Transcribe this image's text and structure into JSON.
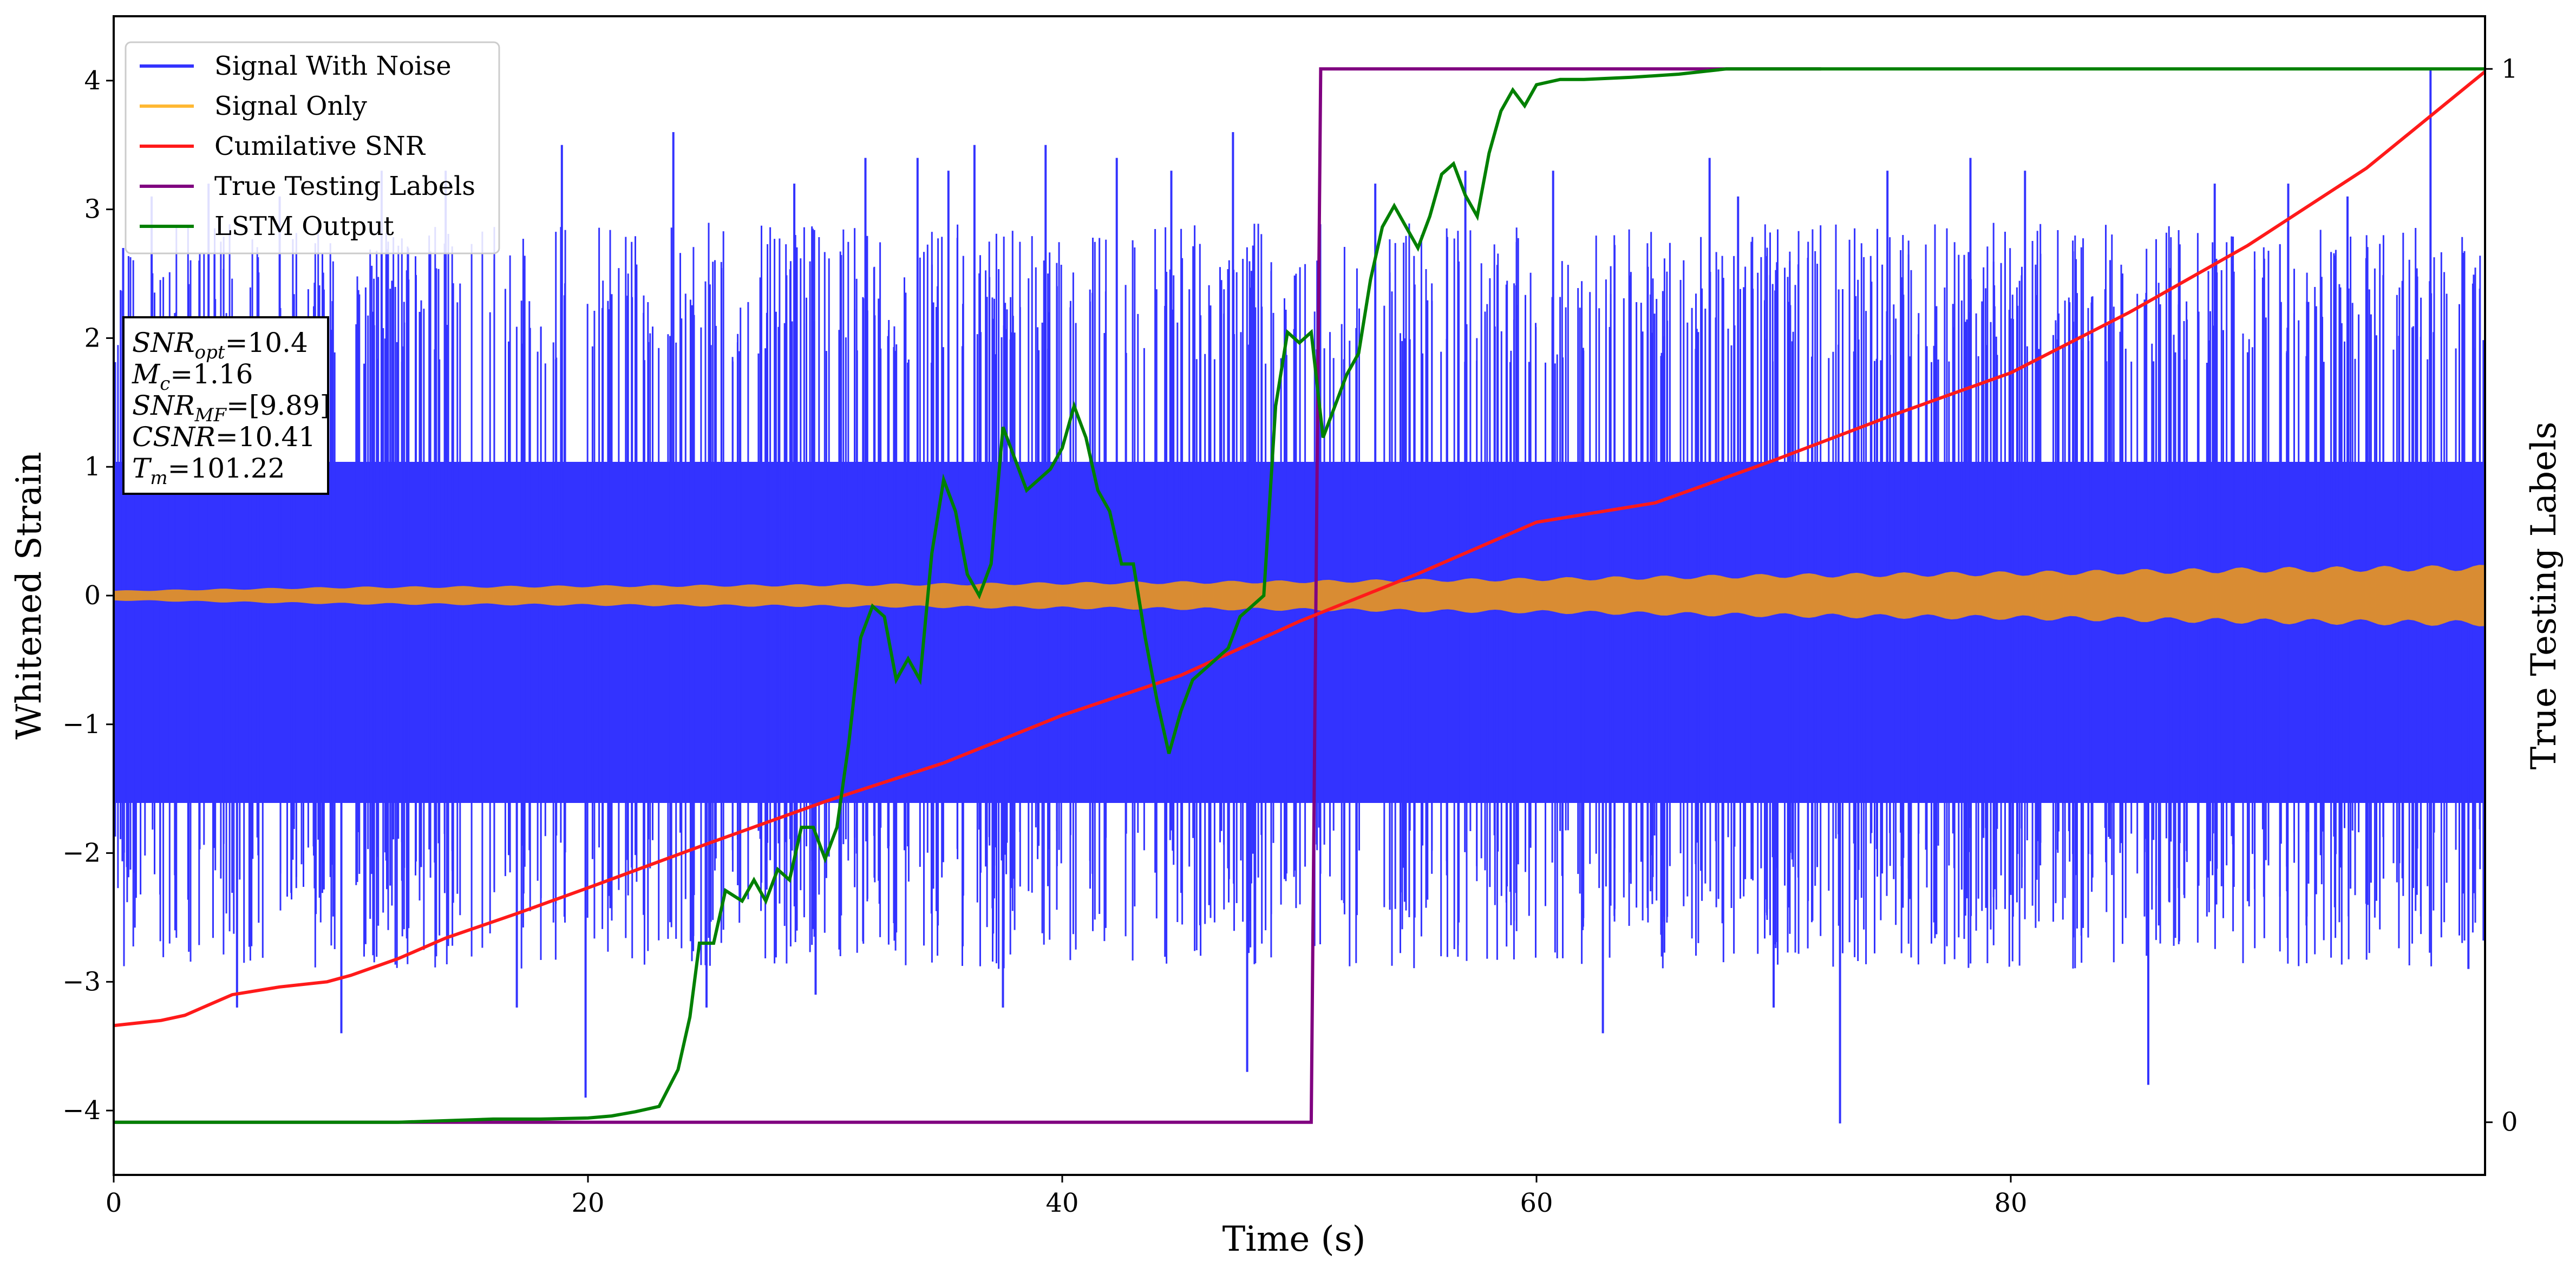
{
  "chart_data": {
    "type": "line",
    "xlabel": "Time (s)",
    "ylabel": "Whitened Strain",
    "y2label": "True Testing Labels",
    "xlim": [
      0,
      100
    ],
    "ylim": [
      -4.5,
      4.5
    ],
    "y2lim": [
      -0.05,
      1.05
    ],
    "xticks": [
      0,
      20,
      40,
      60,
      80
    ],
    "yticks": [
      -4,
      -3,
      -2,
      -1,
      0,
      1,
      2,
      3,
      4
    ],
    "y2ticks": [
      0,
      1
    ],
    "grid": false,
    "legend_position": "upper-left",
    "legend": [
      {
        "label": "Signal With Noise",
        "color": "#3333ff"
      },
      {
        "label": "Signal Only",
        "color": "#ffb833"
      },
      {
        "label": "Cumilative SNR",
        "color": "#ff1a1a"
      },
      {
        "label": "True Testing Labels",
        "color": "#800080"
      },
      {
        "label": "LSTM Output",
        "color": "#008000"
      }
    ],
    "stats": [
      {
        "sym": "SNR",
        "sub": "opt",
        "rest": "=10.4"
      },
      {
        "sym": "M",
        "sub": "c",
        "rest": "=1.16"
      },
      {
        "sym": "SNR",
        "sub": "MF",
        "rest": "=[9.89]"
      },
      {
        "sym": "CSNR",
        "sub": "",
        "rest": "=10.41"
      },
      {
        "sym": "T",
        "sub": "m",
        "rest": "=101.22"
      }
    ],
    "series": [
      {
        "name": "Signal With Noise",
        "axis": "left",
        "color": "#3333ff",
        "description_values": {
          "envelope_upper": 2.6,
          "envelope_lower": -2.6,
          "max_spike": 4.1,
          "min_spike": -4.1
        },
        "spikes": [
          {
            "x": 0.4,
            "y": 2.7
          },
          {
            "x": 1.6,
            "y": 3.1
          },
          {
            "x": 2.6,
            "y": -2.6
          },
          {
            "x": 4.0,
            "y": 3.2
          },
          {
            "x": 5.2,
            "y": -3.2
          },
          {
            "x": 7.0,
            "y": 3.1
          },
          {
            "x": 9.6,
            "y": -3.4
          },
          {
            "x": 11.3,
            "y": 3.3
          },
          {
            "x": 14.0,
            "y": 3.3
          },
          {
            "x": 17.0,
            "y": -3.2
          },
          {
            "x": 18.9,
            "y": 3.5
          },
          {
            "x": 19.9,
            "y": -3.9
          },
          {
            "x": 23.6,
            "y": 3.6
          },
          {
            "x": 25.0,
            "y": -3.2
          },
          {
            "x": 28.7,
            "y": 3.2
          },
          {
            "x": 29.6,
            "y": -3.1
          },
          {
            "x": 31.7,
            "y": 3.4
          },
          {
            "x": 33.9,
            "y": 3.4
          },
          {
            "x": 35.2,
            "y": 3.3
          },
          {
            "x": 36.3,
            "y": 3.5
          },
          {
            "x": 37.5,
            "y": -3.2
          },
          {
            "x": 39.3,
            "y": 3.5
          },
          {
            "x": 42.3,
            "y": 3.4
          },
          {
            "x": 44.6,
            "y": 3.3
          },
          {
            "x": 47.2,
            "y": 3.6
          },
          {
            "x": 47.8,
            "y": -3.7
          },
          {
            "x": 53.2,
            "y": 3.2
          },
          {
            "x": 57.0,
            "y": 3.3
          },
          {
            "x": 60.7,
            "y": 3.3
          },
          {
            "x": 62.8,
            "y": -3.4
          },
          {
            "x": 67.3,
            "y": 3.4
          },
          {
            "x": 68.5,
            "y": 3.1
          },
          {
            "x": 70.0,
            "y": -3.2
          },
          {
            "x": 72.8,
            "y": -4.1
          },
          {
            "x": 74.8,
            "y": 3.3
          },
          {
            "x": 78.3,
            "y": 3.4
          },
          {
            "x": 80.6,
            "y": 3.3
          },
          {
            "x": 85.8,
            "y": -3.8
          },
          {
            "x": 88.6,
            "y": 3.2
          },
          {
            "x": 91.7,
            "y": 3.2
          },
          {
            "x": 94.2,
            "y": 3.1
          },
          {
            "x": 97.7,
            "y": 4.1
          },
          {
            "x": 99.3,
            "y": -2.9
          }
        ]
      },
      {
        "name": "Signal Only",
        "axis": "left",
        "color": "#ffb833",
        "amplitude_points": [
          {
            "x": 0,
            "y": 0.04
          },
          {
            "x": 10,
            "y": 0.07
          },
          {
            "x": 30,
            "y": 0.09
          },
          {
            "x": 50,
            "y": 0.12
          },
          {
            "x": 60,
            "y": 0.14
          },
          {
            "x": 70,
            "y": 0.17
          },
          {
            "x": 80,
            "y": 0.19
          },
          {
            "x": 90,
            "y": 0.22
          },
          {
            "x": 100,
            "y": 0.24
          }
        ]
      },
      {
        "name": "Cumilative SNR",
        "axis": "left",
        "color": "#ff1a1a",
        "points": [
          {
            "x": 0,
            "y": -3.34
          },
          {
            "x": 2,
            "y": -3.3
          },
          {
            "x": 3,
            "y": -3.26
          },
          {
            "x": 4,
            "y": -3.18
          },
          {
            "x": 5,
            "y": -3.1
          },
          {
            "x": 7,
            "y": -3.04
          },
          {
            "x": 9,
            "y": -3.0
          },
          {
            "x": 10,
            "y": -2.95
          },
          {
            "x": 12,
            "y": -2.82
          },
          {
            "x": 14,
            "y": -2.66
          },
          {
            "x": 17,
            "y": -2.47
          },
          {
            "x": 20,
            "y": -2.27
          },
          {
            "x": 25,
            "y": -1.93
          },
          {
            "x": 30,
            "y": -1.6
          },
          {
            "x": 35,
            "y": -1.3
          },
          {
            "x": 40,
            "y": -0.93
          },
          {
            "x": 45,
            "y": -0.62
          },
          {
            "x": 50,
            "y": -0.2
          },
          {
            "x": 55,
            "y": 0.17
          },
          {
            "x": 60,
            "y": 0.57
          },
          {
            "x": 65,
            "y": 0.72
          },
          {
            "x": 70,
            "y": 1.05
          },
          {
            "x": 75,
            "y": 1.4
          },
          {
            "x": 80,
            "y": 1.73
          },
          {
            "x": 85,
            "y": 2.2
          },
          {
            "x": 90,
            "y": 2.72
          },
          {
            "x": 95,
            "y": 3.32
          },
          {
            "x": 100,
            "y": 4.07
          }
        ]
      },
      {
        "name": "True Testing Labels",
        "axis": "right",
        "color": "#800080",
        "points": [
          {
            "x": 0,
            "y": 0
          },
          {
            "x": 50.5,
            "y": 0
          },
          {
            "x": 50.9,
            "y": 1
          },
          {
            "x": 72,
            "y": 1
          }
        ]
      },
      {
        "name": "LSTM Output",
        "axis": "right",
        "color": "#008000",
        "points": [
          {
            "x": 0,
            "y": 0
          },
          {
            "x": 12,
            "y": 0
          },
          {
            "x": 16,
            "y": 0.003
          },
          {
            "x": 18,
            "y": 0.003
          },
          {
            "x": 20,
            "y": 0.004
          },
          {
            "x": 21,
            "y": 0.006
          },
          {
            "x": 22,
            "y": 0.01
          },
          {
            "x": 23,
            "y": 0.015
          },
          {
            "x": 23.8,
            "y": 0.05
          },
          {
            "x": 24.3,
            "y": 0.1
          },
          {
            "x": 24.7,
            "y": 0.17
          },
          {
            "x": 25.3,
            "y": 0.17
          },
          {
            "x": 25.8,
            "y": 0.22
          },
          {
            "x": 26.5,
            "y": 0.21
          },
          {
            "x": 27.0,
            "y": 0.23
          },
          {
            "x": 27.5,
            "y": 0.21
          },
          {
            "x": 28.0,
            "y": 0.24
          },
          {
            "x": 28.5,
            "y": 0.23
          },
          {
            "x": 29.0,
            "y": 0.28
          },
          {
            "x": 29.5,
            "y": 0.28
          },
          {
            "x": 30.0,
            "y": 0.25
          },
          {
            "x": 30.5,
            "y": 0.28
          },
          {
            "x": 31.0,
            "y": 0.36
          },
          {
            "x": 31.5,
            "y": 0.46
          },
          {
            "x": 32.0,
            "y": 0.49
          },
          {
            "x": 32.5,
            "y": 0.48
          },
          {
            "x": 33.0,
            "y": 0.42
          },
          {
            "x": 33.5,
            "y": 0.44
          },
          {
            "x": 34.0,
            "y": 0.42
          },
          {
            "x": 34.5,
            "y": 0.54
          },
          {
            "x": 35.0,
            "y": 0.61
          },
          {
            "x": 35.5,
            "y": 0.58
          },
          {
            "x": 36.0,
            "y": 0.52
          },
          {
            "x": 36.5,
            "y": 0.5
          },
          {
            "x": 37.0,
            "y": 0.53
          },
          {
            "x": 37.5,
            "y": 0.66
          },
          {
            "x": 38.0,
            "y": 0.63
          },
          {
            "x": 38.5,
            "y": 0.6
          },
          {
            "x": 39.0,
            "y": 0.61
          },
          {
            "x": 39.5,
            "y": 0.62
          },
          {
            "x": 40.0,
            "y": 0.64
          },
          {
            "x": 40.5,
            "y": 0.68
          },
          {
            "x": 41.0,
            "y": 0.65
          },
          {
            "x": 41.5,
            "y": 0.6
          },
          {
            "x": 42.0,
            "y": 0.58
          },
          {
            "x": 42.5,
            "y": 0.53
          },
          {
            "x": 43.0,
            "y": 0.53
          },
          {
            "x": 43.5,
            "y": 0.46
          },
          {
            "x": 44.0,
            "y": 0.4
          },
          {
            "x": 44.5,
            "y": 0.35
          },
          {
            "x": 45.0,
            "y": 0.39
          },
          {
            "x": 45.5,
            "y": 0.42
          },
          {
            "x": 46.0,
            "y": 0.43
          },
          {
            "x": 46.5,
            "y": 0.44
          },
          {
            "x": 47.0,
            "y": 0.45
          },
          {
            "x": 47.5,
            "y": 0.48
          },
          {
            "x": 48.0,
            "y": 0.49
          },
          {
            "x": 48.5,
            "y": 0.5
          },
          {
            "x": 49.0,
            "y": 0.68
          },
          {
            "x": 49.5,
            "y": 0.75
          },
          {
            "x": 50.0,
            "y": 0.74
          },
          {
            "x": 50.5,
            "y": 0.75
          },
          {
            "x": 51.0,
            "y": 0.65
          },
          {
            "x": 51.5,
            "y": 0.68
          },
          {
            "x": 52.0,
            "y": 0.71
          },
          {
            "x": 52.5,
            "y": 0.73
          },
          {
            "x": 53.0,
            "y": 0.8
          },
          {
            "x": 53.5,
            "y": 0.85
          },
          {
            "x": 54.0,
            "y": 0.87
          },
          {
            "x": 54.5,
            "y": 0.85
          },
          {
            "x": 55.0,
            "y": 0.83
          },
          {
            "x": 55.5,
            "y": 0.86
          },
          {
            "x": 56.0,
            "y": 0.9
          },
          {
            "x": 56.5,
            "y": 0.91
          },
          {
            "x": 57.0,
            "y": 0.88
          },
          {
            "x": 57.5,
            "y": 0.86
          },
          {
            "x": 58.0,
            "y": 0.92
          },
          {
            "x": 58.5,
            "y": 0.96
          },
          {
            "x": 59.0,
            "y": 0.98
          },
          {
            "x": 59.5,
            "y": 0.965
          },
          {
            "x": 60.0,
            "y": 0.985
          },
          {
            "x": 61.0,
            "y": 0.99
          },
          {
            "x": 62.0,
            "y": 0.99
          },
          {
            "x": 64.0,
            "y": 0.992
          },
          {
            "x": 66.0,
            "y": 0.995
          },
          {
            "x": 68.0,
            "y": 1
          },
          {
            "x": 100,
            "y": 1
          }
        ]
      }
    ]
  }
}
